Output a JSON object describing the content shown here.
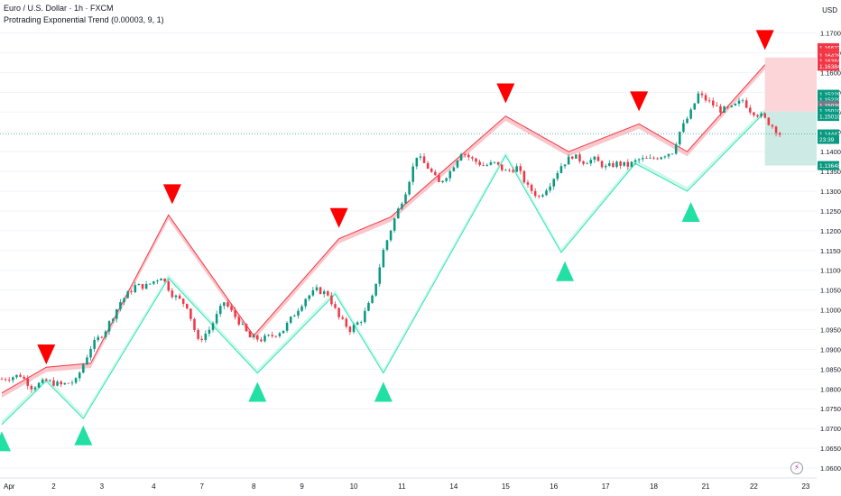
{
  "header": {
    "symbol_line": "Euro / U.S. Dollar · 1h · FXCM",
    "indicator_line": "Protrading Exponential Trend (0.00003, 9, 1)",
    "currency": "USD"
  },
  "icons": {
    "bolt": "lightning-icon",
    "bolt_glyph": "⚡"
  },
  "colors": {
    "up": "#089981",
    "down": "#f23645",
    "down_line": "#f23645",
    "up_line": "#2ee6b5",
    "cloud_down": "#f7b4b9",
    "cloud_up": "#bff5e4",
    "marker_down": "#ff0000",
    "marker_up": "#22e0a4",
    "grid": "#f0f3fa",
    "tp_box": "#fbd5d8",
    "sl_box": "#cdebe4"
  },
  "chart_data": {
    "type": "candlestick",
    "y_range": [
      1.0575,
      1.1715
    ],
    "y_ticks": [
      "1.06000",
      "1.06500",
      "1.07000",
      "1.07500",
      "1.08000",
      "1.08500",
      "1.09000",
      "1.09500",
      "1.10000",
      "1.10500",
      "1.11000",
      "1.11500",
      "1.12000",
      "1.12500",
      "1.13000",
      "1.13500",
      "1.14000",
      "1.14500",
      "1.15000",
      "1.15500",
      "1.16000",
      "1.16500",
      "1.17000"
    ],
    "x_ticks": [
      {
        "label": "Apr",
        "i": 0
      },
      {
        "label": "2",
        "i": 14
      },
      {
        "label": "3",
        "i": 27
      },
      {
        "label": "4",
        "i": 41
      },
      {
        "label": "7",
        "i": 54
      },
      {
        "label": "8",
        "i": 68
      },
      {
        "label": "9",
        "i": 81
      },
      {
        "label": "10",
        "i": 95
      },
      {
        "label": "11",
        "i": 108
      },
      {
        "label": "14",
        "i": 122
      },
      {
        "label": "15",
        "i": 136
      },
      {
        "label": "16",
        "i": 149
      },
      {
        "label": "17",
        "i": 163
      },
      {
        "label": "18",
        "i": 176
      },
      {
        "label": "21",
        "i": 190
      },
      {
        "label": "22",
        "i": 203
      },
      {
        "label": "23",
        "i": 217
      }
    ],
    "n_bars": 219,
    "anchors": [
      [
        0,
        1.0825
      ],
      [
        5,
        1.0835
      ],
      [
        8,
        1.0805
      ],
      [
        12,
        1.082
      ],
      [
        16,
        1.081
      ],
      [
        20,
        1.082
      ],
      [
        24,
        1.0905
      ],
      [
        28,
        1.095
      ],
      [
        32,
        1.102
      ],
      [
        36,
        1.106
      ],
      [
        39,
        1.106
      ],
      [
        43,
        1.1085
      ],
      [
        46,
        1.104
      ],
      [
        50,
        1.101
      ],
      [
        53,
        1.092
      ],
      [
        56,
        1.095
      ],
      [
        60,
        1.102
      ],
      [
        64,
        1.097
      ],
      [
        67,
        1.093
      ],
      [
        70,
        1.0925
      ],
      [
        73,
        1.0935
      ],
      [
        76,
        1.095
      ],
      [
        79,
        1.099
      ],
      [
        82,
        1.103
      ],
      [
        85,
        1.105
      ],
      [
        88,
        1.104
      ],
      [
        91,
        1.098
      ],
      [
        94,
        1.095
      ],
      [
        97,
        1.0975
      ],
      [
        100,
        1.103
      ],
      [
        103,
        1.115
      ],
      [
        106,
        1.123
      ],
      [
        109,
        1.13
      ],
      [
        112,
        1.139
      ],
      [
        115,
        1.136
      ],
      [
        118,
        1.132
      ],
      [
        121,
        1.135
      ],
      [
        124,
        1.14
      ],
      [
        127,
        1.138
      ],
      [
        130,
        1.1365
      ],
      [
        133,
        1.137
      ],
      [
        136,
        1.135
      ],
      [
        139,
        1.136
      ],
      [
        142,
        1.131
      ],
      [
        145,
        1.1285
      ],
      [
        148,
        1.132
      ],
      [
        151,
        1.1365
      ],
      [
        154,
        1.139
      ],
      [
        157,
        1.1375
      ],
      [
        160,
        1.138
      ],
      [
        163,
        1.136
      ],
      [
        166,
        1.137
      ],
      [
        169,
        1.1365
      ],
      [
        172,
        1.138
      ],
      [
        175,
        1.138
      ],
      [
        178,
        1.139
      ],
      [
        181,
        1.14
      ],
      [
        183,
        1.145
      ],
      [
        186,
        1.15
      ],
      [
        188,
        1.1545
      ],
      [
        191,
        1.1525
      ],
      [
        194,
        1.1505
      ],
      [
        197,
        1.151
      ],
      [
        200,
        1.153
      ],
      [
        202,
        1.1505
      ],
      [
        205,
        1.149
      ],
      [
        208,
        1.1465
      ],
      [
        210,
        1.1445
      ]
    ],
    "trend_lines": {
      "down": [
        [
          0,
          1.079
        ],
        [
          12,
          1.0855
        ],
        [
          24,
          1.0865
        ],
        [
          45,
          1.124
        ],
        [
          68,
          1.0935
        ],
        [
          91,
          1.118
        ],
        [
          105,
          1.1235
        ],
        [
          136,
          1.149
        ],
        [
          153,
          1.14
        ],
        [
          172,
          1.147
        ],
        [
          185,
          1.14
        ],
        [
          206,
          1.162
        ]
      ],
      "up": [
        [
          0,
          1.071
        ],
        [
          12,
          1.082
        ],
        [
          22,
          1.0725
        ],
        [
          45,
          1.108
        ],
        [
          69,
          1.084
        ],
        [
          90,
          1.104
        ],
        [
          103,
          1.084
        ],
        [
          136,
          1.139
        ],
        [
          151,
          1.1145
        ],
        [
          171,
          1.137
        ],
        [
          185,
          1.13
        ],
        [
          206,
          1.15
        ]
      ]
    },
    "down_markers": [
      {
        "i": 12,
        "y": 1.0885
      },
      {
        "i": 46,
        "y": 1.129
      },
      {
        "i": 91,
        "y": 1.123
      },
      {
        "i": 136,
        "y": 1.1545
      },
      {
        "i": 172,
        "y": 1.1525
      },
      {
        "i": 206,
        "y": 1.168
      }
    ],
    "up_markers": [
      {
        "i": 0,
        "y": 1.067
      },
      {
        "i": 22,
        "y": 1.0685
      },
      {
        "i": 69,
        "y": 1.0795
      },
      {
        "i": 103,
        "y": 1.0795
      },
      {
        "i": 152,
        "y": 1.11
      },
      {
        "i": 186,
        "y": 1.125
      }
    ],
    "tp_zone": {
      "i_start": 206,
      "i_end": 219,
      "y_top": 1.1638,
      "y_bottom": 1.1501
    },
    "sl_zone": {
      "i_start": 206,
      "i_end": 219,
      "y_top": 1.1501,
      "y_bottom": 1.1365
    },
    "current_price": 1.14447,
    "price_tags": [
      {
        "value": "1.16627",
        "y": 1.16627,
        "color": "#f23645"
      },
      {
        "value": "1.16627",
        "y": 1.165,
        "color": "#f23645"
      },
      {
        "value": "1.16428",
        "y": 1.16428,
        "color": "#f23645"
      },
      {
        "value": "1.16384",
        "y": 1.1629,
        "color": "#f23645"
      },
      {
        "value": "1.16384",
        "y": 1.1616,
        "color": "#f23645"
      },
      {
        "value": "1.15229",
        "y": 1.1545,
        "color": "#089981"
      },
      {
        "value": "1.15229",
        "y": 1.1531,
        "color": "#089981"
      },
      {
        "value": "1.15038",
        "y": 1.1517,
        "color": "#787b86"
      },
      {
        "value": "1.15010",
        "y": 1.1503,
        "color": "#089981"
      },
      {
        "value": "1.15010",
        "y": 1.1489,
        "color": "#089981"
      },
      {
        "value": "1.14447",
        "y": 1.14447,
        "color": "#089981"
      },
      {
        "value": "23:39",
        "y": 1.1431,
        "color": "#089981"
      },
      {
        "value": "1.13648",
        "y": 1.13648,
        "color": "#089981"
      }
    ]
  }
}
